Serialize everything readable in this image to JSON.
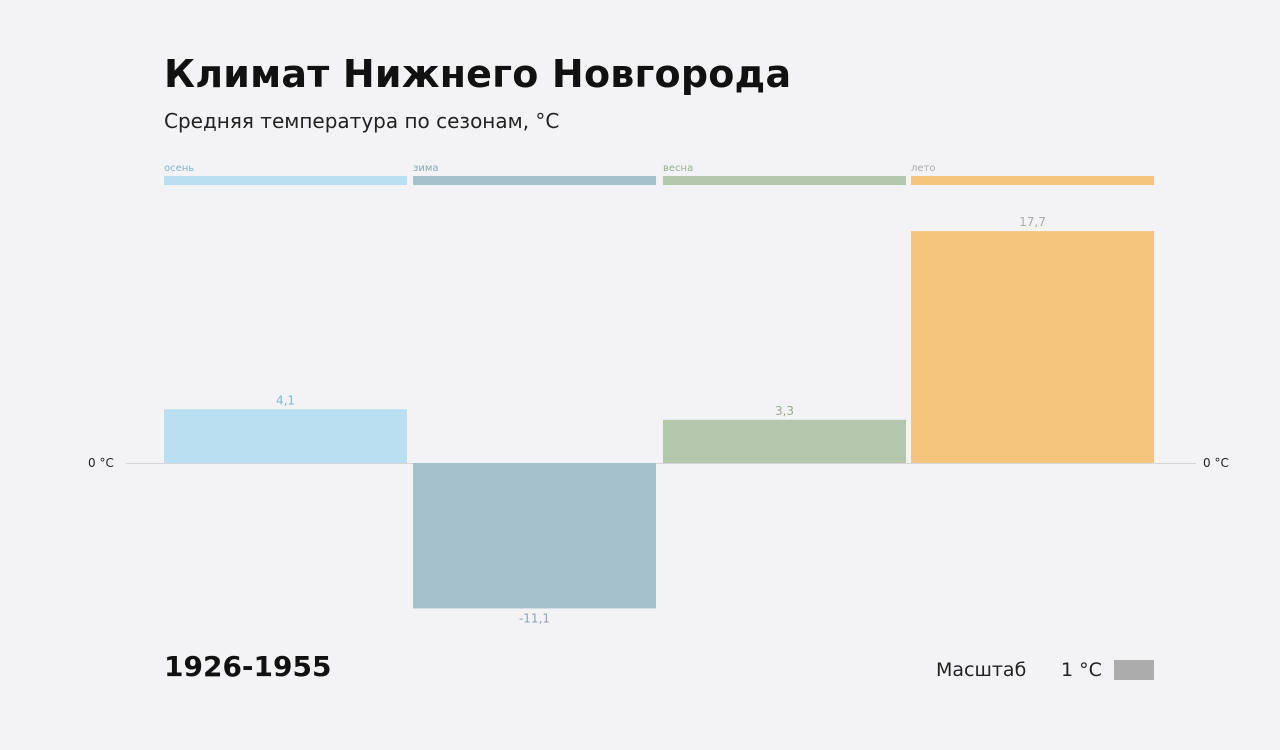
{
  "title": "Климат Нижнего Новгорода",
  "subtitle": "Средняя температура по сезонам, °C",
  "period": "1926-1955",
  "scale": {
    "label": "Масштаб",
    "unit_label": "1 °C",
    "color": "#acacac"
  },
  "chart_data": {
    "type": "bar",
    "categories": [
      "осень",
      "зима",
      "весна",
      "лето"
    ],
    "values": [
      4.1,
      -11.1,
      3.3,
      17.7
    ],
    "value_labels": [
      "4,1",
      "-11,1",
      "3,3",
      "17,7"
    ],
    "colors": [
      "#b9dff0",
      "#a4c1cc",
      "#b3c7ac",
      "#f5c47d"
    ],
    "label_colors": [
      "#7fb7cf",
      "#8aa6b2",
      "#9aab92",
      "#aaaaaa"
    ],
    "zero_label": "0 °C",
    "ylim": [
      -11.1,
      17.7
    ],
    "grid": false,
    "legend": "top"
  }
}
